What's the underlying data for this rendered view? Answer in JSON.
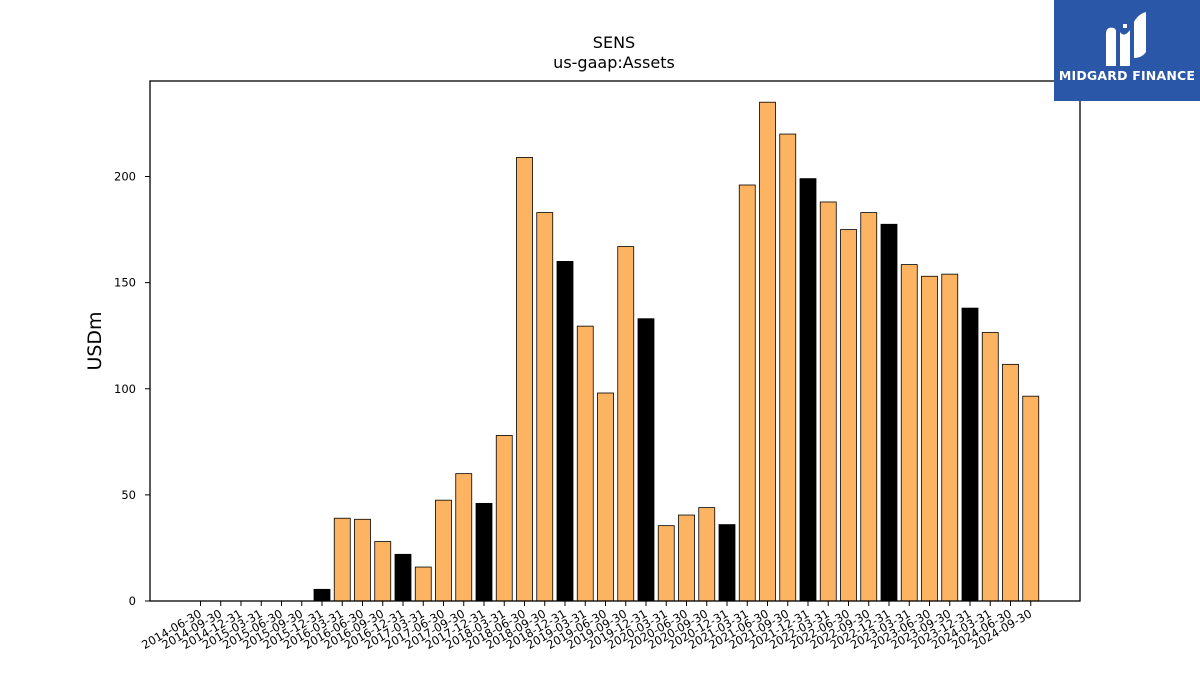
{
  "brand": {
    "name": "MIDGARD FINANCE",
    "background": "#2b57a8",
    "icon": "midgard-logo-icon"
  },
  "colors": {
    "bar_default": "#fdb462",
    "bar_highlight": "#000000",
    "edge": "#000000"
  },
  "chart_data": {
    "type": "bar",
    "title": "SENS",
    "subtitle": "us-gaap:Assets",
    "xlabel": "",
    "ylabel": "USDm",
    "ylim": [
      0,
      245
    ],
    "yticks": [
      0,
      50,
      100,
      150,
      200
    ],
    "grid": false,
    "highlight_rule": "December 31 (year-end) bars shown in black",
    "categories": [
      "2014-06-30",
      "2014-09-30",
      "2014-12-31",
      "2015-03-31",
      "2015-06-30",
      "2015-09-30",
      "2015-12-31",
      "2016-03-31",
      "2016-06-30",
      "2016-09-30",
      "2016-12-31",
      "2017-03-31",
      "2017-06-30",
      "2017-09-30",
      "2017-12-31",
      "2018-03-31",
      "2018-06-30",
      "2018-09-30",
      "2018-12-31",
      "2019-03-31",
      "2019-06-30",
      "2019-09-30",
      "2019-12-31",
      "2020-03-31",
      "2020-06-30",
      "2020-09-30",
      "2020-12-31",
      "2021-03-31",
      "2021-06-30",
      "2021-09-30",
      "2021-12-31",
      "2022-03-31",
      "2022-06-30",
      "2022-09-30",
      "2022-12-31",
      "2023-03-31",
      "2023-06-30",
      "2023-09-30",
      "2023-12-31",
      "2024-03-31",
      "2024-06-30",
      "2024-09-30"
    ],
    "values": [
      0,
      0,
      0,
      0,
      0,
      0,
      5.5,
      39,
      38.5,
      28,
      22,
      16,
      47.5,
      60,
      46,
      78,
      209,
      183,
      160,
      129.5,
      98,
      167,
      133,
      35.5,
      40.5,
      44,
      36,
      196,
      235,
      220,
      199,
      188,
      175,
      183,
      177.5,
      158.5,
      153,
      154,
      138,
      126.5,
      111.5,
      96.5
    ],
    "highlighted": [
      false,
      false,
      true,
      false,
      false,
      false,
      true,
      false,
      false,
      false,
      true,
      false,
      false,
      false,
      true,
      false,
      false,
      false,
      true,
      false,
      false,
      false,
      true,
      false,
      false,
      false,
      true,
      false,
      false,
      false,
      true,
      false,
      false,
      false,
      true,
      false,
      false,
      false,
      true,
      false,
      false,
      false
    ]
  }
}
